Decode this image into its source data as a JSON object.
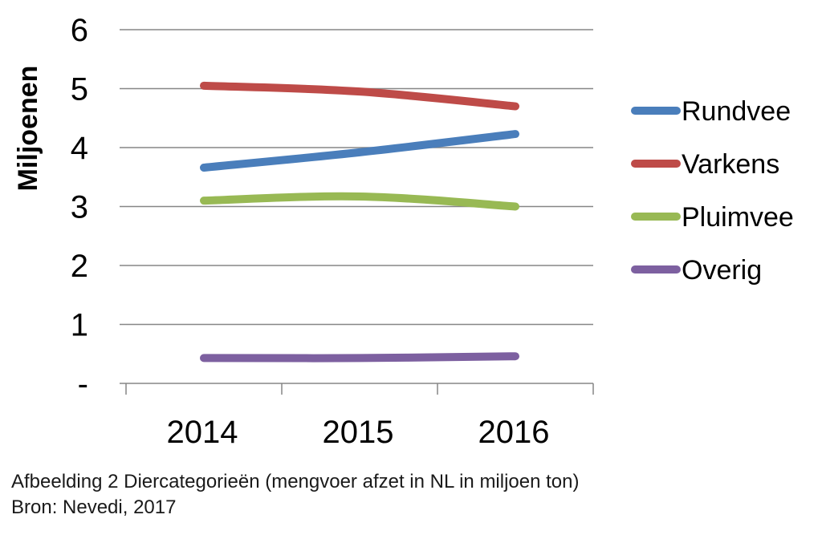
{
  "chart_data": {
    "type": "line",
    "ylabel": "Miljoenen",
    "xlabel": "",
    "categories": [
      "2014",
      "2015",
      "2016"
    ],
    "ylim": [
      0,
      6
    ],
    "y_ticks": [
      {
        "value": 0,
        "label": "-"
      },
      {
        "value": 1,
        "label": "1"
      },
      {
        "value": 2,
        "label": "2"
      },
      {
        "value": 3,
        "label": "3"
      },
      {
        "value": 4,
        "label": "4"
      },
      {
        "value": 5,
        "label": "5"
      },
      {
        "value": 6,
        "label": "6"
      }
    ],
    "grid": true,
    "legend_position": "right",
    "series": [
      {
        "name": "Rundvee",
        "color": "#4a7ebb",
        "values": [
          3.66,
          3.92,
          4.23
        ]
      },
      {
        "name": "Varkens",
        "color": "#be4b48",
        "values": [
          5.05,
          4.95,
          4.7
        ]
      },
      {
        "name": "Pluimvee",
        "color": "#98b954",
        "values": [
          3.1,
          3.17,
          3.0
        ]
      },
      {
        "name": "Overig",
        "color": "#7d60a0",
        "values": [
          0.43,
          0.43,
          0.46
        ]
      }
    ]
  },
  "caption": {
    "line1": "Afbeelding  2 Diercategorieën  (mengvoer  afzet in NL in miljoen ton)",
    "line2": "Bron:  Nevedi,  2017"
  }
}
